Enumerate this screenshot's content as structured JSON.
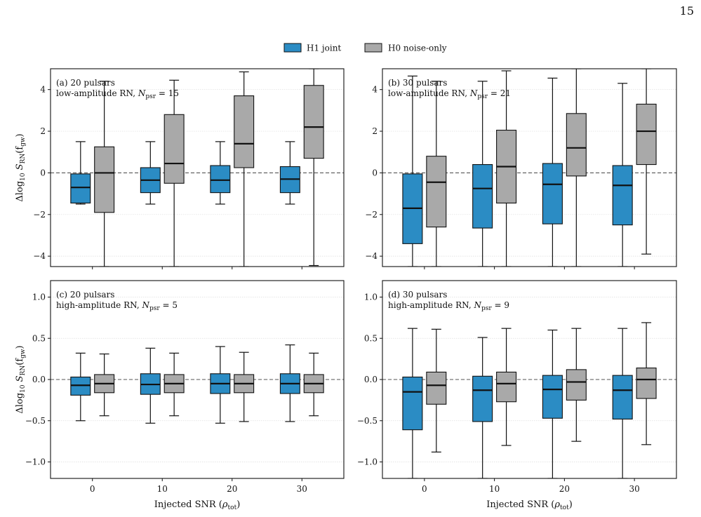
{
  "page_number": "15",
  "colors": {
    "h1": "#2b8cc4",
    "h0": "#a9a9a9"
  },
  "legend": {
    "h1_label": "H1 joint",
    "h0_label": "H0 noise-only"
  },
  "xlabel_prefix": "Injected SNR (",
  "xlabel_symbol": "ρ",
  "xlabel_sub": "tot",
  "xlabel_suffix": ")",
  "ylabel_prefix": "Δlog",
  "ylabel_sub10": "10",
  "ylabel_S": " S",
  "ylabel_subRN": "RN",
  "ylabel_f": "(f",
  "ylabel_subgw": "gw",
  "ylabel_close": ")",
  "chart_data": [
    {
      "type": "box",
      "panel": "(a)",
      "title": "(a) 20 pulsars",
      "subtitle_prefix": "low-amplitude RN, ",
      "npsr_symbol": "N",
      "npsr_sub": "psr",
      "npsr_value": " = 15",
      "categories": [
        0,
        10,
        20,
        30
      ],
      "ylim": [
        -4.5,
        5.0
      ],
      "yticks": [
        -4,
        -2,
        0,
        2,
        4
      ],
      "grid": "horizontal",
      "show_x_ticklabels": false,
      "series": [
        {
          "name": "H1 joint",
          "boxes": [
            {
              "whislo": -1.5,
              "q1": -1.45,
              "med": -0.7,
              "q3": -0.05,
              "whishi": 1.5
            },
            {
              "whislo": -1.5,
              "q1": -0.95,
              "med": -0.35,
              "q3": 0.25,
              "whishi": 1.5
            },
            {
              "whislo": -1.5,
              "q1": -0.95,
              "med": -0.35,
              "q3": 0.35,
              "whishi": 1.5
            },
            {
              "whislo": -1.5,
              "q1": -0.95,
              "med": -0.3,
              "q3": 0.3,
              "whishi": 1.5
            }
          ]
        },
        {
          "name": "H0 noise-only",
          "boxes": [
            {
              "whislo": -4.5,
              "q1": -1.9,
              "med": 0.0,
              "q3": 1.25,
              "whishi": 4.4
            },
            {
              "whislo": -4.5,
              "q1": -0.5,
              "med": 0.45,
              "q3": 2.8,
              "whishi": 4.45
            },
            {
              "whislo": -4.5,
              "q1": 0.25,
              "med": 1.4,
              "q3": 3.7,
              "whishi": 4.85
            },
            {
              "whislo": -4.45,
              "q1": 0.7,
              "med": 2.2,
              "q3": 4.2,
              "whishi": 5.0
            }
          ]
        }
      ]
    },
    {
      "type": "box",
      "panel": "(b)",
      "title": "(b) 30 pulsars",
      "subtitle_prefix": "low-amplitude RN, ",
      "npsr_symbol": "N",
      "npsr_sub": "psr",
      "npsr_value": " = 21",
      "categories": [
        0,
        10,
        20,
        30
      ],
      "ylim": [
        -4.5,
        5.0
      ],
      "yticks": [
        -4,
        -2,
        0,
        2,
        4
      ],
      "grid": "horizontal",
      "show_x_ticklabels": false,
      "series": [
        {
          "name": "H1 joint",
          "boxes": [
            {
              "whislo": -4.5,
              "q1": -3.4,
              "med": -1.7,
              "q3": -0.05,
              "whishi": 4.65
            },
            {
              "whislo": -4.5,
              "q1": -2.65,
              "med": -0.75,
              "q3": 0.4,
              "whishi": 4.4
            },
            {
              "whislo": -4.5,
              "q1": -2.45,
              "med": -0.55,
              "q3": 0.45,
              "whishi": 4.55
            },
            {
              "whislo": -4.5,
              "q1": -2.5,
              "med": -0.6,
              "q3": 0.35,
              "whishi": 4.3
            }
          ]
        },
        {
          "name": "H0 noise-only",
          "boxes": [
            {
              "whislo": -4.5,
              "q1": -2.6,
              "med": -0.45,
              "q3": 0.8,
              "whishi": 4.4
            },
            {
              "whislo": -4.5,
              "q1": -1.45,
              "med": 0.3,
              "q3": 2.05,
              "whishi": 4.9
            },
            {
              "whislo": -4.5,
              "q1": -0.15,
              "med": 1.2,
              "q3": 2.85,
              "whishi": 5.0
            },
            {
              "whislo": -3.9,
              "q1": 0.4,
              "med": 2.0,
              "q3": 3.3,
              "whishi": 5.0
            }
          ]
        }
      ]
    },
    {
      "type": "box",
      "panel": "(c)",
      "title": "(c) 20 pulsars",
      "subtitle_prefix": "high-amplitude RN, ",
      "npsr_symbol": "N",
      "npsr_sub": "psr",
      "npsr_value": " = 5",
      "categories": [
        0,
        10,
        20,
        30
      ],
      "ylim": [
        -1.2,
        1.2
      ],
      "yticks": [
        -1.0,
        -0.5,
        0.0,
        0.5,
        1.0
      ],
      "grid": "horizontal",
      "show_x_ticklabels": true,
      "series": [
        {
          "name": "H1 joint",
          "boxes": [
            {
              "whislo": -0.5,
              "q1": -0.19,
              "med": -0.07,
              "q3": 0.03,
              "whishi": 0.32
            },
            {
              "whislo": -0.53,
              "q1": -0.18,
              "med": -0.06,
              "q3": 0.07,
              "whishi": 0.38
            },
            {
              "whislo": -0.53,
              "q1": -0.17,
              "med": -0.05,
              "q3": 0.07,
              "whishi": 0.4
            },
            {
              "whislo": -0.51,
              "q1": -0.17,
              "med": -0.05,
              "q3": 0.07,
              "whishi": 0.42
            }
          ]
        },
        {
          "name": "H0 noise-only",
          "boxes": [
            {
              "whislo": -0.44,
              "q1": -0.16,
              "med": -0.05,
              "q3": 0.06,
              "whishi": 0.31
            },
            {
              "whislo": -0.44,
              "q1": -0.16,
              "med": -0.05,
              "q3": 0.06,
              "whishi": 0.32
            },
            {
              "whislo": -0.51,
              "q1": -0.16,
              "med": -0.05,
              "q3": 0.06,
              "whishi": 0.33
            },
            {
              "whislo": -0.44,
              "q1": -0.16,
              "med": -0.05,
              "q3": 0.06,
              "whishi": 0.32
            }
          ]
        }
      ]
    },
    {
      "type": "box",
      "panel": "(d)",
      "title": "(d) 30 pulsars",
      "subtitle_prefix": "high-amplitude RN, ",
      "npsr_symbol": "N",
      "npsr_sub": "psr",
      "npsr_value": " = 9",
      "categories": [
        0,
        10,
        20,
        30
      ],
      "ylim": [
        -1.2,
        1.2
      ],
      "yticks": [
        -1.0,
        -0.5,
        0.0,
        0.5,
        1.0
      ],
      "grid": "horizontal",
      "show_x_ticklabels": true,
      "series": [
        {
          "name": "H1 joint",
          "boxes": [
            {
              "whislo": -1.2,
              "q1": -0.61,
              "med": -0.15,
              "q3": 0.03,
              "whishi": 0.62
            },
            {
              "whislo": -1.2,
              "q1": -0.51,
              "med": -0.13,
              "q3": 0.04,
              "whishi": 0.51
            },
            {
              "whislo": -1.2,
              "q1": -0.47,
              "med": -0.12,
              "q3": 0.05,
              "whishi": 0.6
            },
            {
              "whislo": -1.2,
              "q1": -0.48,
              "med": -0.13,
              "q3": 0.05,
              "whishi": 0.62
            }
          ]
        },
        {
          "name": "H0 noise-only",
          "boxes": [
            {
              "whislo": -0.88,
              "q1": -0.3,
              "med": -0.07,
              "q3": 0.09,
              "whishi": 0.61
            },
            {
              "whislo": -0.8,
              "q1": -0.27,
              "med": -0.05,
              "q3": 0.09,
              "whishi": 0.62
            },
            {
              "whislo": -0.75,
              "q1": -0.25,
              "med": -0.03,
              "q3": 0.12,
              "whishi": 0.62
            },
            {
              "whislo": -0.79,
              "q1": -0.23,
              "med": 0.0,
              "q3": 0.14,
              "whishi": 0.69
            }
          ]
        }
      ]
    }
  ]
}
